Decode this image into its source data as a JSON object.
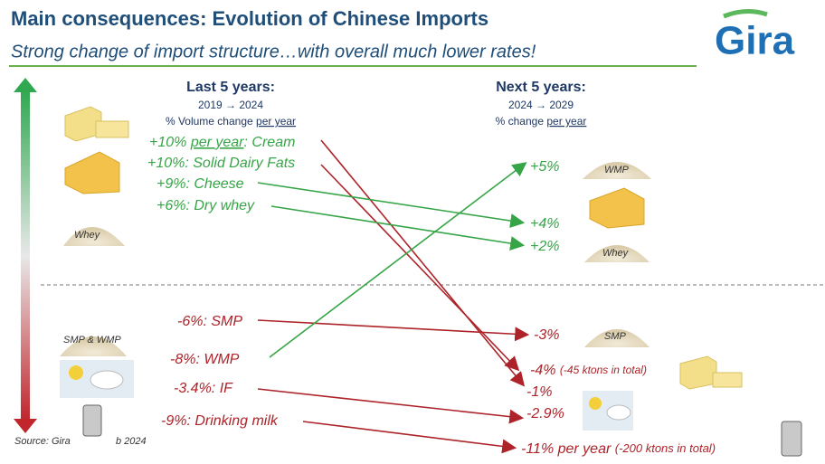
{
  "header": {
    "title": "Main consequences: Evolution of Chinese Imports",
    "subtitle": "Strong change of import structure…with overall much lower rates!",
    "logo": "Gira"
  },
  "left": {
    "heading": "Last 5 years:",
    "period": "2019 → 2024",
    "metric": [
      "% Volume change ",
      "per year"
    ],
    "items": [
      [
        "+10% ",
        "per year",
        ": Cream"
      ],
      [
        "+10%: Solid Dairy Fats"
      ],
      [
        "+9%: Cheese"
      ],
      [
        "+6%: Dry whey"
      ],
      [
        "-6%: SMP"
      ],
      [
        "-8%: WMP"
      ],
      [
        "-3.4%: IF"
      ],
      [
        "-9%: Drinking milk"
      ]
    ]
  },
  "right": {
    "heading": "Next 5 years:",
    "period": "2024 → 2029",
    "metric": [
      "% change ",
      "per year"
    ],
    "items": [
      [
        "+5%"
      ],
      [
        "+4%"
      ],
      [
        "+2%"
      ],
      [
        "-3%"
      ],
      [
        "-4% ",
        "(-45 ktons in total)"
      ],
      [
        "-1%"
      ],
      [
        "-2.9%"
      ],
      [
        "-11% per year ",
        "(-200 ktons in total)"
      ]
    ]
  },
  "image_labels": [
    "Whey",
    "SMP & WMP",
    "WMP",
    "Whey",
    "SMP"
  ],
  "source": [
    "Source: Gira",
    "b 2024"
  ]
}
